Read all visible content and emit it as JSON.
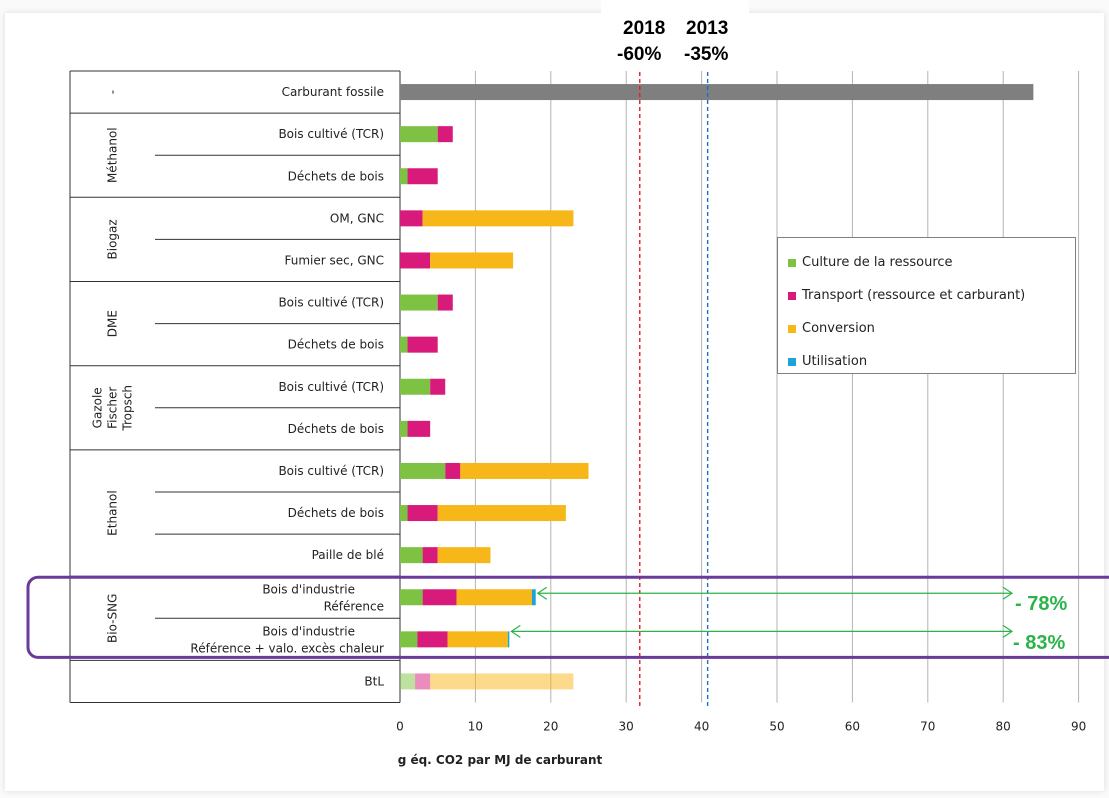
{
  "header": {
    "line1": {
      "label": "2018",
      "value": "-60%",
      "color": "#e81c23"
    },
    "line2": {
      "label": "2013",
      "value": "-35%",
      "color": "#1a6fc4"
    }
  },
  "legend": {
    "items": [
      {
        "label": "Culture de la ressource",
        "color": "#7dc242"
      },
      {
        "label": "Transport (ressource et carburant)",
        "color": "#d81b7a"
      },
      {
        "label": "Conversion",
        "color": "#f7b718"
      },
      {
        "label": "Utilisation",
        "color": "#1fa2d8"
      }
    ]
  },
  "annotations": {
    "a1": "- 78%",
    "a2": "- 83%",
    "color": "#2bb34a",
    "box_color": "#6a3a9a"
  },
  "chart_data": {
    "type": "bar",
    "orientation": "horizontal",
    "stacked": true,
    "xlabel": "g éq. CO2 par MJ de carburant",
    "xlim": [
      0,
      90
    ],
    "xticks": [
      0,
      10,
      20,
      30,
      40,
      50,
      60,
      70,
      80,
      90
    ],
    "grid": true,
    "legend_position": "right",
    "groups": [
      {
        "name": "-",
        "rows": 1
      },
      {
        "name": "Méthanol",
        "rows": 2
      },
      {
        "name": "Biogaz",
        "rows": 2
      },
      {
        "name": "DME",
        "rows": 2
      },
      {
        "name": "Gazole Fischer Tropsch",
        "rows": 2
      },
      {
        "name": "Ethanol",
        "rows": 3
      },
      {
        "name": "Bio-SNG",
        "rows": 2
      },
      {
        "name": "",
        "rows": 1
      }
    ],
    "categories": [
      "Carburant fossile",
      "Bois cultivé (TCR)",
      "Déchets de bois",
      "OM, GNC",
      "Fumier sec, GNC",
      "Bois cultivé (TCR)",
      "Déchets de bois",
      "Bois cultivé (TCR)",
      "Déchets de bois",
      "Bois cultivé (TCR)",
      "Déchets de bois",
      "Paille de blé",
      "Bois d'industrie\nRéférence",
      "Bois d'industrie\nRéférence + valo. excès chaleur",
      "BtL"
    ],
    "series": [
      {
        "name": "Culture de la ressource",
        "color": "#7dc242",
        "values": [
          0,
          5,
          1,
          0,
          0,
          5,
          1,
          4,
          1,
          6,
          1,
          3,
          3,
          2.3,
          2
        ]
      },
      {
        "name": "Transport (ressource et carburant)",
        "color": "#d81b7a",
        "values": [
          0,
          2,
          4,
          3,
          4,
          2,
          4,
          2,
          3,
          2,
          4,
          2,
          4.5,
          4,
          2
        ]
      },
      {
        "name": "Conversion",
        "color": "#f7b718",
        "values": [
          0,
          0,
          0,
          20,
          11,
          0,
          0,
          0,
          0,
          17,
          17,
          7,
          10,
          8,
          19
        ]
      },
      {
        "name": "Utilisation",
        "color": "#1fa2d8",
        "values": [
          0,
          0,
          0,
          0,
          0,
          0,
          0,
          0,
          0,
          0,
          0,
          0,
          0.5,
          0.2,
          0
        ]
      }
    ],
    "fossil": {
      "value": 84,
      "color": "#7f7f7f"
    },
    "btl_faded": true,
    "reference_lines": [
      {
        "label": "2018",
        "value": 31.8,
        "color": "#e81c23"
      },
      {
        "label": "2013",
        "value": 40.8,
        "color": "#1a6fc4"
      }
    ]
  }
}
